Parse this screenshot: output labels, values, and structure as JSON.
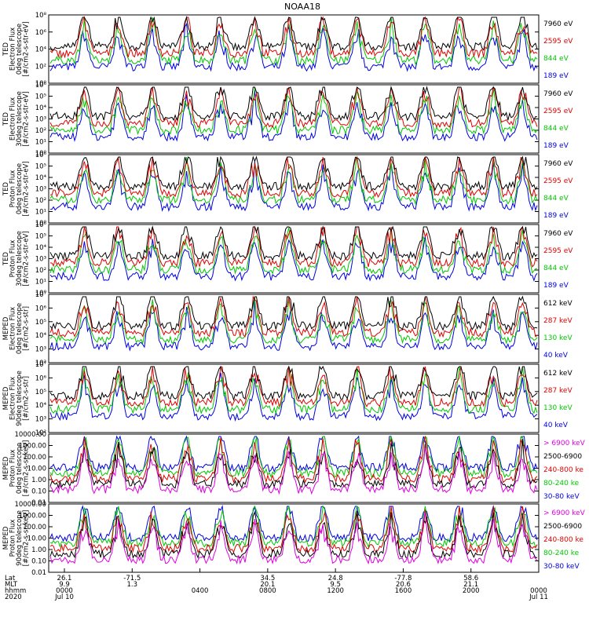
{
  "chart_data": {
    "type": "line",
    "title": "NOAA18",
    "x_ticks": [
      {
        "time": "0000",
        "lat": "26.1",
        "mlt": "9.9"
      },
      {
        "time": "",
        "lat": "-71.5",
        "mlt": "1.3"
      },
      {
        "time": "0400",
        "lat": "",
        "mlt": ""
      },
      {
        "time": "0800",
        "lat": "34.5",
        "mlt": "20.1"
      },
      {
        "time": "1200",
        "lat": "24.8",
        "mlt": "9.5"
      },
      {
        "time": "1600",
        "lat": "-77.8",
        "mlt": "20.6"
      },
      {
        "time": "2000",
        "lat": "58.6",
        "mlt": "21.1"
      },
      {
        "time": "0000",
        "lat": "",
        "mlt": ""
      }
    ],
    "x_row_labels": [
      "Lat",
      "MLT",
      "hhmm",
      "2020"
    ],
    "date_start": "Jul 10",
    "date_end": "Jul 11",
    "panels": [
      {
        "ylabel": [
          "TED",
          "Electron Flux",
          "0deg telescope",
          "[#/cm2-s-str-eV]"
        ],
        "yticks": [
          "10⁰",
          "10²",
          "10⁴",
          "10⁶",
          "10⁸"
        ],
        "legend": [
          {
            "label": "7960 eV",
            "color": "#000000"
          },
          {
            "label": "2595 eV",
            "color": "#e00000"
          },
          {
            "label": "844 eV",
            "color": "#00c800"
          },
          {
            "label": "189 eV",
            "color": "#0000e0"
          }
        ]
      },
      {
        "ylabel": [
          "TED",
          "Electron Flux",
          "30deg telescope",
          "[#/cm2-s-str-eV]"
        ],
        "yticks": [
          "10⁰",
          "10¹",
          "10²",
          "10³",
          "10⁴",
          "10⁵",
          "10⁶"
        ],
        "legend": [
          {
            "label": "7960 eV",
            "color": "#000000"
          },
          {
            "label": "2595 eV",
            "color": "#e00000"
          },
          {
            "label": "844 eV",
            "color": "#00c800"
          },
          {
            "label": "189 eV",
            "color": "#0000e0"
          }
        ]
      },
      {
        "ylabel": [
          "TED",
          "Proton Flux",
          "0deg telescope",
          "[#/cm2-s-str-eV]"
        ],
        "yticks": [
          "10⁰",
          "10¹",
          "10²",
          "10³",
          "10⁴",
          "10⁵",
          "10⁶"
        ],
        "legend": [
          {
            "label": "7960 eV",
            "color": "#000000"
          },
          {
            "label": "2595 eV",
            "color": "#e00000"
          },
          {
            "label": "844 eV",
            "color": "#00c800"
          },
          {
            "label": "189 eV",
            "color": "#0000e0"
          }
        ]
      },
      {
        "ylabel": [
          "TED",
          "Proton Flux",
          "30deg telescope",
          "[#/cm2-s-str-eV]"
        ],
        "yticks": [
          "10⁰",
          "10¹",
          "10²",
          "10³",
          "10⁴",
          "10⁵",
          "10⁶"
        ],
        "legend": [
          {
            "label": "7960 eV",
            "color": "#000000"
          },
          {
            "label": "2595 eV",
            "color": "#e00000"
          },
          {
            "label": "844 eV",
            "color": "#00c800"
          },
          {
            "label": "189 eV",
            "color": "#0000e0"
          }
        ]
      },
      {
        "ylabel": [
          "MEPED",
          "Electron Flux",
          "0deg telescope",
          "[#/cm2-s-str]"
        ],
        "yticks": [
          "10²",
          "10³",
          "10⁴",
          "10⁵",
          "10⁶",
          "10⁷"
        ],
        "legend": [
          {
            "label": "612 keV",
            "color": "#000000"
          },
          {
            "label": "287 keV",
            "color": "#e00000"
          },
          {
            "label": "130 keV",
            "color": "#00c800"
          },
          {
            "label": "40 keV",
            "color": "#0000e0"
          }
        ]
      },
      {
        "ylabel": [
          "MEPED",
          "Electron Flux",
          "90deg telescope",
          "[#/cm2-s-str]"
        ],
        "yticks": [
          "10²",
          "10³",
          "10⁴",
          "10⁵",
          "10⁶",
          "10⁷"
        ],
        "legend": [
          {
            "label": "612 keV",
            "color": "#000000"
          },
          {
            "label": "287 keV",
            "color": "#e00000"
          },
          {
            "label": "130 keV",
            "color": "#00c800"
          },
          {
            "label": "40 keV",
            "color": "#0000e0"
          }
        ]
      },
      {
        "ylabel": [
          "MEPED",
          "Proton Flux",
          "0deg telescope",
          "[#/cm2-s-sr-keV]"
        ],
        "yticks": [
          "0.01",
          "0.10",
          "1.00",
          "10.00",
          "100.00",
          "1000.00",
          "10000.00"
        ],
        "legend": [
          {
            "label": "> 6900 keV",
            "color": "#e000e0"
          },
          {
            "label": "2500-6900",
            "color": "#000000"
          },
          {
            "label": "240-800 ke",
            "color": "#e00000"
          },
          {
            "label": "80-240 ke",
            "color": "#00c800"
          },
          {
            "label": "30-80 keV",
            "color": "#0000e0"
          }
        ]
      },
      {
        "ylabel": [
          "MEPED",
          "Proton Flux",
          "90deg telescope",
          "[#/cm2-s-sr-keV]"
        ],
        "yticks": [
          "0.01",
          "0.10",
          "1.00",
          "10.00",
          "100.00",
          "1000.00",
          "10000.00"
        ],
        "legend": [
          {
            "label": "> 6900 keV",
            "color": "#e000e0"
          },
          {
            "label": "2500-6900",
            "color": "#000000"
          },
          {
            "label": "240-800 ke",
            "color": "#e00000"
          },
          {
            "label": "80-240 ke",
            "color": "#00c800"
          },
          {
            "label": "30-80 keV",
            "color": "#0000e0"
          }
        ]
      }
    ]
  }
}
